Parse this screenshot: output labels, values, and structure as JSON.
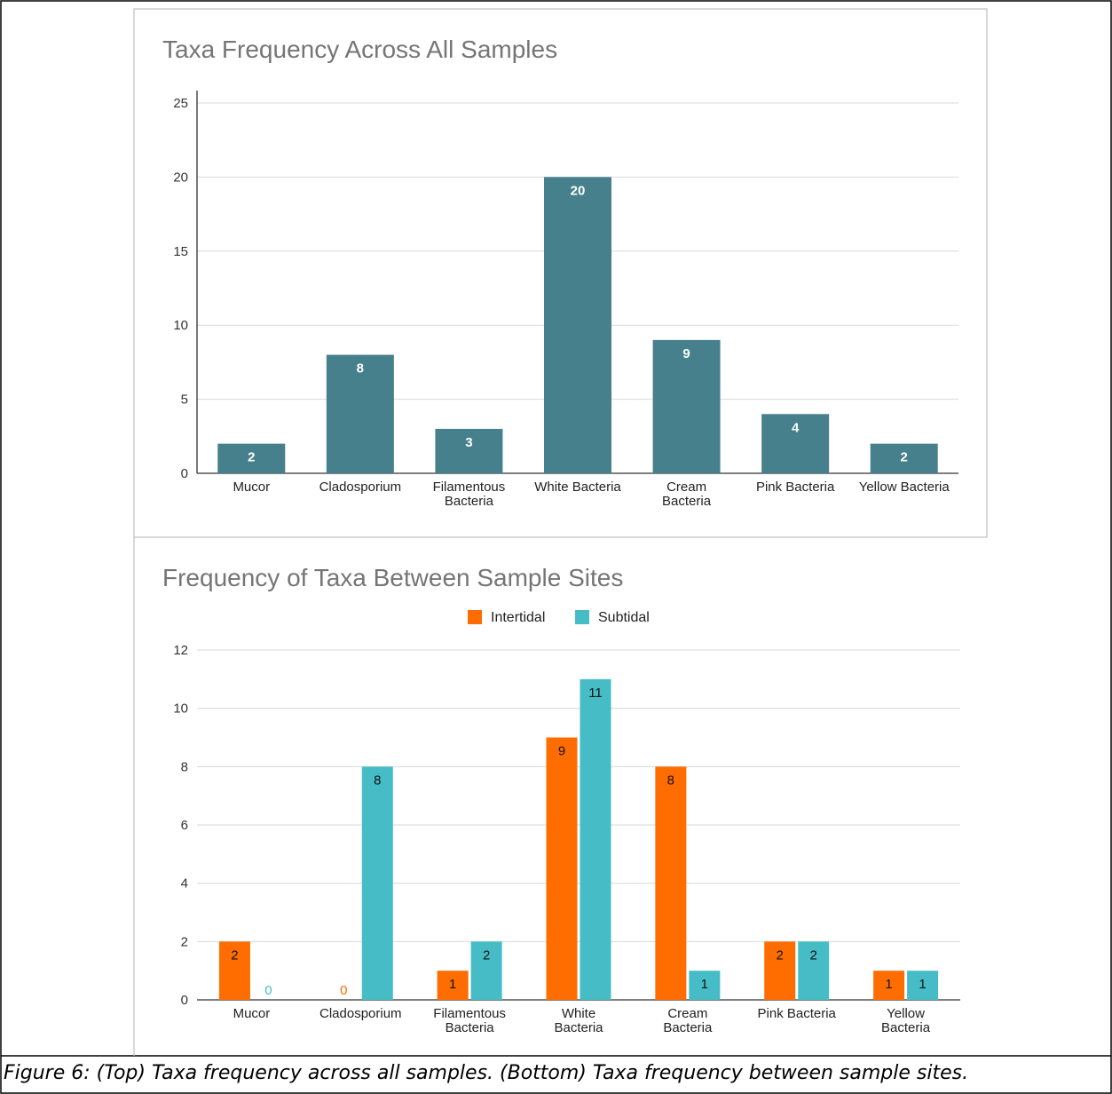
{
  "caption": "Figure 6: (Top) Taxa frequency across all samples. (Bottom) Taxa frequency between sample sites.",
  "colors": {
    "single": "#46808c",
    "intertidal": "#ff6d01",
    "subtidal": "#46bdc6",
    "grid": "#d9d9d9",
    "axis": "#333333",
    "title": "#757575"
  },
  "chart_data": [
    {
      "type": "bar",
      "title": "Taxa Frequency Across All Samples",
      "categories": [
        [
          "Mucor"
        ],
        [
          "Cladosporium"
        ],
        [
          "Filamentous",
          "Bacteria"
        ],
        [
          "White Bacteria"
        ],
        [
          "Cream",
          "Bacteria"
        ],
        [
          "Pink Bacteria"
        ],
        [
          "Yellow Bacteria"
        ]
      ],
      "series": [
        {
          "values": [
            2,
            8,
            3,
            20,
            9,
            4,
            2
          ]
        }
      ],
      "ylim": [
        0,
        25
      ],
      "yticks": [
        0,
        5,
        10,
        15,
        20,
        25
      ],
      "grid": true,
      "legend": "none"
    },
    {
      "type": "bar",
      "title": "Frequency of Taxa Between Sample Sites",
      "categories": [
        [
          "Mucor"
        ],
        [
          "Cladosporium"
        ],
        [
          "Filamentous",
          "Bacteria"
        ],
        [
          "White",
          "Bacteria"
        ],
        [
          "Cream",
          "Bacteria"
        ],
        [
          "Pink Bacteria"
        ],
        [
          "Yellow",
          "Bacteria"
        ]
      ],
      "series": [
        {
          "name": "Intertidal",
          "values": [
            2,
            0,
            1,
            9,
            8,
            2,
            1
          ]
        },
        {
          "name": "Subtidal",
          "values": [
            0,
            8,
            2,
            11,
            1,
            2,
            1
          ]
        }
      ],
      "ylim": [
        0,
        12
      ],
      "yticks": [
        0,
        2,
        4,
        6,
        8,
        10,
        12
      ],
      "grid": true,
      "legend": "top-center"
    }
  ]
}
